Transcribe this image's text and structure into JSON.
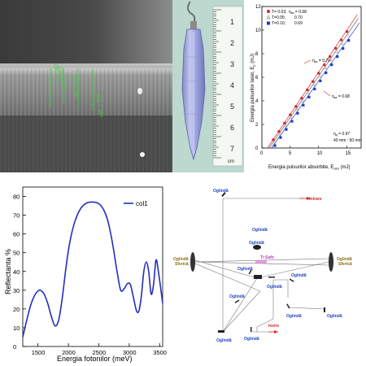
{
  "sem": {
    "labels": [
      "280 nm",
      "250.4 nm",
      "290.4 nm",
      "311.7 nm"
    ]
  },
  "crystal": {
    "ruler_digits": [
      "1",
      "2",
      "3",
      "4",
      "5",
      "6",
      "7"
    ],
    "ruler_unit": "cm"
  },
  "laser_plot": {
    "ylabel": "Energia pulsurilor laser, E",
    "ylabel_sub": "p",
    "ylabel_unit": "(mJ)",
    "xlabel": "Energia pulsurilor absorbite, E",
    "xlabel_sub": "abs",
    "xlabel_unit": "(mJ)",
    "legend": [
      {
        "label": "T= 0.03;",
        "eta": "0.68",
        "marker": "circle",
        "color": "#d62828"
      },
      {
        "label": "T=0.05;",
        "eta": "0.70",
        "marker": "triangle",
        "color": "#8a8a8a"
      },
      {
        "label": "T=0.10;",
        "eta": "0.69",
        "marker": "square",
        "color": "#1f3fbf"
      }
    ],
    "eta_prefix": "η",
    "eta_sub": "sa",
    "annot_070": "0.70",
    "annot_068": "0.68",
    "annot_eta_q": "0.97",
    "annot_dims": "40 mm : 50 mm",
    "xlim": [
      0,
      17.5
    ],
    "ylim": [
      0,
      12
    ],
    "xticks": [
      "0",
      "5",
      "10",
      "15"
    ],
    "yticks": [
      "0",
      "2",
      "4",
      "6",
      "8",
      "10",
      "12"
    ]
  },
  "chart_data": {
    "type": "line",
    "title": "",
    "xlabel": "Energia fotonilor (meV)",
    "ylabel": "Reflectanta %",
    "xlim": [
      1250,
      3550
    ],
    "ylim": [
      0,
      85
    ],
    "xticks": [
      1500,
      2000,
      2500,
      3000,
      3500
    ],
    "yticks": [
      0,
      10,
      20,
      30,
      40,
      50,
      60,
      70,
      80
    ],
    "legend_position": "top-right",
    "series": [
      {
        "name": "col1",
        "color": "#1f2fbf",
        "x": [
          1250,
          1300,
          1380,
          1450,
          1520,
          1560,
          1600,
          1660,
          1720,
          1780,
          1840,
          1900,
          1960,
          2020,
          2100,
          2200,
          2300,
          2400,
          2480,
          2560,
          2640,
          2720,
          2800,
          2860,
          2920,
          2970,
          3020,
          3070,
          3120,
          3160,
          3200,
          3240,
          3280,
          3320,
          3360,
          3400,
          3440,
          3480,
          3550
        ],
        "y": [
          5,
          12,
          22,
          27.5,
          30,
          29.5,
          28,
          23,
          16,
          11,
          14,
          26,
          42,
          55,
          66,
          73.5,
          76.5,
          77,
          76.5,
          74,
          68,
          56,
          40,
          30,
          31,
          33.5,
          33,
          26,
          19,
          19,
          27,
          40,
          45,
          40,
          28,
          33,
          46,
          40,
          23
        ]
      }
    ]
  },
  "optics": {
    "labels": {
      "ogl_top": "Oglindă",
      "intrare": "Intrare",
      "ogl_sferica_left": "Oglindă\nSferică",
      "ogl_sferica_right": "Oglindă\nSferică",
      "ogl_a": "Oglindă",
      "ogl_b": "Oglindă",
      "ogl_c": "Oglindă",
      "ti_safir": "Ti:Safir",
      "ogl_d": "Oglindă",
      "ogl_e": "Oglindă",
      "ogl_f": "Oglindă",
      "ogl_g": "Oglindă",
      "ogl_h": "Oglindă",
      "iesire": "Iesire",
      "ogl_bottom": "Oglindă",
      "ogl_i": "Oglindă"
    }
  }
}
